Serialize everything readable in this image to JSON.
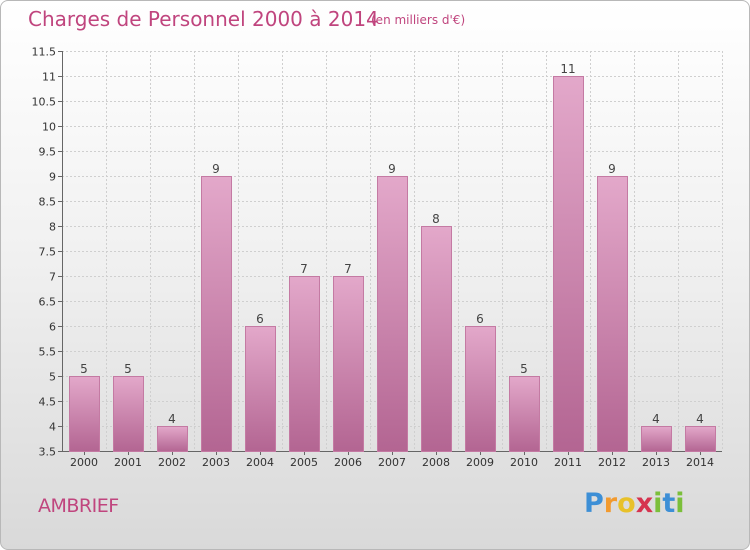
{
  "title": "Charges de Personnel 2000 à 2014",
  "subtitle": "(en milliers d'€)",
  "commune": "AMBRIEF",
  "logo": {
    "letters": [
      "P",
      "r",
      "o",
      "x",
      "i",
      "t",
      "i"
    ],
    "colors": [
      "#3d8fd6",
      "#f29a2e",
      "#e8c12a",
      "#d6334f",
      "#7bbf3a",
      "#3d8fd6",
      "#7bbf3a"
    ]
  },
  "colors": {
    "bar_top": "#e3a8ca",
    "bar_bottom": "#b36592",
    "bar_stroke": "#c47aa3",
    "accent": "#c0457e"
  },
  "chart_data": {
    "type": "bar",
    "title": "Charges de Personnel 2000 à 2014",
    "subtitle": "(en milliers d'€)",
    "categories": [
      "2000",
      "2001",
      "2002",
      "2003",
      "2004",
      "2005",
      "2006",
      "2007",
      "2008",
      "2009",
      "2010",
      "2011",
      "2012",
      "2013",
      "2014"
    ],
    "values": [
      5,
      5,
      4,
      9,
      6,
      7,
      7,
      9,
      8,
      6,
      5,
      11,
      9,
      4,
      4
    ],
    "value_labels": [
      "5",
      "5",
      "4",
      "9",
      "6",
      "7",
      "7",
      "9",
      "8",
      "6",
      "5",
      "11",
      "9",
      "4",
      "4"
    ],
    "ylim": [
      3.5,
      11.5
    ],
    "yticks": [
      3.5,
      4,
      4.5,
      5,
      5.5,
      6,
      6.5,
      7,
      7.5,
      8,
      8.5,
      9,
      9.5,
      10,
      10.5,
      11,
      11.5
    ],
    "ytick_labels": [
      "3.5",
      "4",
      "4.5",
      "5",
      "5.5",
      "6",
      "6.5",
      "7",
      "7.5",
      "8",
      "8.5",
      "9",
      "9.5",
      "10",
      "10.5",
      "11",
      "11.5"
    ],
    "grid": true,
    "legend": "none"
  }
}
